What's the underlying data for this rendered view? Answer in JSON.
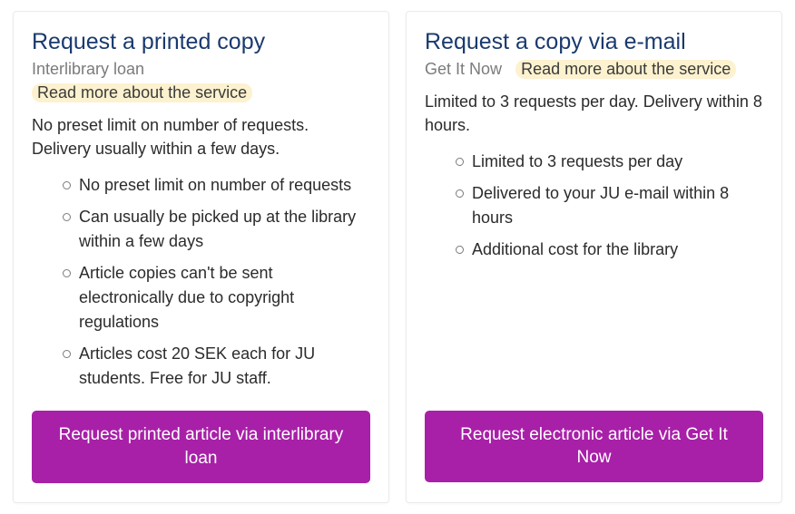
{
  "colors": {
    "title": "#1a3a6e",
    "subtext": "#7b7b7b",
    "body_text": "#2b2b2b",
    "highlight_bg": "#fdf2cf",
    "highlight_text": "#3a3a3a",
    "button_bg": "#a820a8",
    "button_text": "#ffffff",
    "card_border": "#eceaea",
    "background": "#ffffff",
    "bullet_ring": "#7b7b7b"
  },
  "typography": {
    "title_fontsize": 25,
    "body_fontsize": 18,
    "button_fontsize": 19
  },
  "cards": {
    "printed": {
      "title": "Request a printed copy",
      "subtitle": "Interlibrary loan",
      "read_more": "Read more about the service",
      "description": "No preset limit on number of requests. Delivery usually within a few days.",
      "bullets": [
        "No preset limit on number of requests",
        "Can usually be picked up at the library within a few days",
        "Article copies can't be sent electronically due to copyright regulations",
        "Articles cost 20 SEK each for JU students. Free for JU staff."
      ],
      "button": "Request printed article via interlibrary loan"
    },
    "email": {
      "title": "Request a copy via e-mail",
      "subtitle": "Get It Now",
      "read_more": "Read more about the service",
      "description": "Limited to 3 requests per day. Delivery within 8 hours.",
      "bullets": [
        "Limited to 3 requests per day",
        "Delivered to your JU e-mail within 8 hours",
        "Additional cost for the library"
      ],
      "button": "Request electronic article via Get It Now"
    }
  }
}
